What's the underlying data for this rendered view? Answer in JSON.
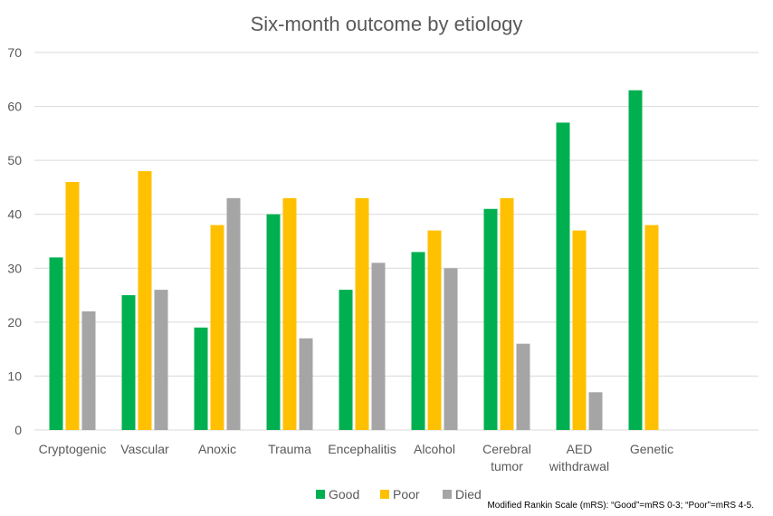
{
  "chart_data": {
    "type": "bar",
    "title": "Six-month outcome by etiology",
    "xlabel": "",
    "ylabel": "",
    "ylim": [
      0,
      70
    ],
    "yticks": [
      0,
      10,
      20,
      30,
      40,
      50,
      60,
      70
    ],
    "grid": true,
    "legend_position": "bottom",
    "categories": [
      [
        "Cryptogenic"
      ],
      [
        "Vascular"
      ],
      [
        "Anoxic"
      ],
      [
        "Trauma"
      ],
      [
        "Encephalitis"
      ],
      [
        "Alcohol"
      ],
      [
        "Cerebral",
        "tumor"
      ],
      [
        "AED",
        "withdrawal"
      ],
      [
        "Genetic"
      ]
    ],
    "series": [
      {
        "name": "Good",
        "color": "#00b050",
        "values": [
          32,
          25,
          19,
          40,
          26,
          33,
          41,
          57,
          63
        ]
      },
      {
        "name": "Poor",
        "color": "#ffc000",
        "values": [
          46,
          48,
          38,
          43,
          43,
          37,
          43,
          37,
          38
        ]
      },
      {
        "name": "Died",
        "color": "#a5a5a5",
        "values": [
          22,
          26,
          43,
          17,
          31,
          30,
          16,
          7,
          null
        ]
      }
    ],
    "footnote": "Modified Rankin Scale (mRS): “Good”=mRS 0-3; “Poor”=mRS 4-5."
  }
}
